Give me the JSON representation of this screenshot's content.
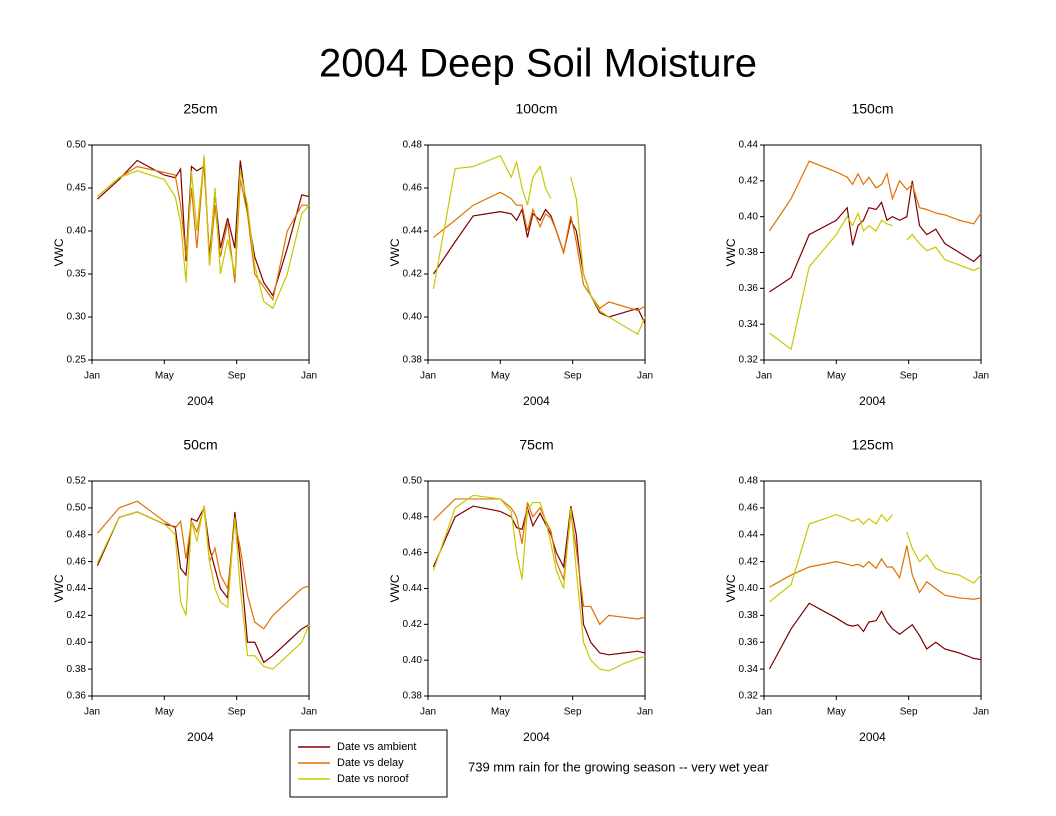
{
  "title": "2004 Deep Soil Moisture",
  "annotation": "739 mm rain for the growing season -- very wet year",
  "chart_data": [
    {
      "type": "line",
      "title": "25cm",
      "x_label": "2004",
      "y_label": "VWC",
      "x": [
        0.3,
        1.5,
        2.5,
        4.0,
        4.6,
        4.9,
        5.2,
        5.5,
        5.8,
        6.2,
        6.5,
        6.8,
        7.1,
        7.5,
        7.9,
        8.2,
        8.6,
        9.0,
        9.5,
        10.0,
        10.8,
        11.6,
        12.0
      ],
      "xlim": [
        0,
        12
      ],
      "xticks": [
        {
          "value": 0,
          "label": "Jan"
        },
        {
          "value": 4,
          "label": "May"
        },
        {
          "value": 8,
          "label": "Sep"
        },
        {
          "value": 12,
          "label": "Jan"
        }
      ],
      "ylim": [
        0.25,
        0.5
      ],
      "yticks": [
        0.25,
        {
          "value": 0.3,
          "label": "0.30"
        },
        0.35,
        {
          "value": 0.4,
          "label": "0.40"
        },
        0.45,
        {
          "value": 0.5,
          "label": "0.50"
        }
      ],
      "series": [
        {
          "name": "Date vs ambient",
          "color": "#800000",
          "values": [
            0.437,
            0.46,
            0.482,
            0.465,
            0.462,
            0.472,
            0.365,
            0.475,
            0.47,
            0.475,
            0.37,
            0.445,
            0.38,
            0.415,
            0.38,
            0.482,
            0.42,
            0.37,
            0.34,
            0.325,
            0.38,
            0.442,
            0.44
          ]
        },
        {
          "name": "Date vs delay",
          "color": "#e07000",
          "values": [
            0.44,
            0.462,
            0.475,
            0.468,
            0.465,
            0.43,
            0.37,
            0.45,
            0.38,
            0.485,
            0.36,
            0.43,
            0.37,
            0.41,
            0.34,
            0.46,
            0.42,
            0.35,
            0.335,
            0.32,
            0.4,
            0.43,
            0.43
          ]
        },
        {
          "name": "Date vs noroof",
          "color": "#c8c800",
          "values": [
            0.44,
            0.462,
            0.47,
            0.46,
            0.44,
            0.41,
            0.34,
            0.47,
            0.4,
            0.488,
            0.36,
            0.45,
            0.35,
            0.39,
            0.35,
            0.47,
            0.43,
            0.36,
            0.318,
            0.31,
            0.35,
            0.42,
            0.43
          ]
        }
      ]
    },
    {
      "type": "line",
      "title": "100cm",
      "x_label": "2004",
      "y_label": "VWC",
      "x": [
        0.3,
        1.5,
        2.5,
        4.0,
        4.6,
        4.9,
        5.2,
        5.5,
        5.8,
        6.2,
        6.5,
        6.8,
        7.1,
        7.5,
        7.9,
        8.2,
        8.6,
        9.0,
        9.5,
        10.0,
        10.8,
        11.6,
        12.0
      ],
      "xlim": [
        0,
        12
      ],
      "xticks": [
        {
          "value": 0,
          "label": "Jan"
        },
        {
          "value": 4,
          "label": "May"
        },
        {
          "value": 8,
          "label": "Sep"
        },
        {
          "value": 12,
          "label": "Jan"
        }
      ],
      "ylim": [
        0.38,
        0.48
      ],
      "yticks": [
        0.38,
        {
          "value": 0.4,
          "label": "0.40"
        },
        0.42,
        0.44,
        0.46,
        0.48
      ],
      "series": [
        {
          "name": "Date vs ambient",
          "color": "#800000",
          "values": [
            0.42,
            0.435,
            0.447,
            0.449,
            0.448,
            0.445,
            0.45,
            0.437,
            0.448,
            0.445,
            0.45,
            0.447,
            0.44,
            0.43,
            0.445,
            0.44,
            0.42,
            0.41,
            0.402,
            0.4,
            0.402,
            0.404,
            0.397
          ]
        },
        {
          "name": "Date vs delay",
          "color": "#e07000",
          "values": [
            0.437,
            0.445,
            0.452,
            0.458,
            0.455,
            0.452,
            0.452,
            0.44,
            0.45,
            0.442,
            0.448,
            0.446,
            0.44,
            0.43,
            0.447,
            0.435,
            0.415,
            0.41,
            0.404,
            0.407,
            0.405,
            0.403,
            0.405
          ]
        },
        {
          "name": "Date vs noroof",
          "color": "#c8c800",
          "values": [
            0.413,
            0.469,
            0.47,
            0.475,
            0.465,
            0.472,
            0.46,
            0.452,
            0.465,
            0.47,
            0.46,
            0.455,
            null,
            null,
            0.465,
            0.455,
            0.42,
            0.41,
            0.403,
            0.4,
            0.396,
            0.392,
            0.4
          ]
        }
      ]
    },
    {
      "type": "line",
      "title": "150cm",
      "x_label": "2004",
      "y_label": "VWC",
      "x": [
        0.3,
        1.5,
        2.5,
        4.0,
        4.6,
        4.9,
        5.2,
        5.5,
        5.8,
        6.2,
        6.5,
        6.8,
        7.1,
        7.5,
        7.9,
        8.2,
        8.6,
        9.0,
        9.5,
        10.0,
        10.8,
        11.6,
        12.0
      ],
      "xlim": [
        0,
        12
      ],
      "xticks": [
        {
          "value": 0,
          "label": "Jan"
        },
        {
          "value": 4,
          "label": "May"
        },
        {
          "value": 8,
          "label": "Sep"
        },
        {
          "value": 12,
          "label": "Jan"
        }
      ],
      "ylim": [
        0.32,
        0.44
      ],
      "yticks": [
        0.32,
        0.34,
        0.36,
        0.38,
        {
          "value": 0.4,
          "label": "0.40"
        },
        0.42,
        0.44
      ],
      "series": [
        {
          "name": "Date vs ambient",
          "color": "#800000",
          "values": [
            0.358,
            0.366,
            0.39,
            0.398,
            0.405,
            0.384,
            0.395,
            0.398,
            0.405,
            0.404,
            0.408,
            0.398,
            0.4,
            0.398,
            0.4,
            0.42,
            0.395,
            0.39,
            0.393,
            0.385,
            0.38,
            0.375,
            0.379
          ]
        },
        {
          "name": "Date vs delay",
          "color": "#e07000",
          "values": [
            0.392,
            0.41,
            0.431,
            0.425,
            0.422,
            0.418,
            0.424,
            0.418,
            0.422,
            0.416,
            0.418,
            0.424,
            0.41,
            0.42,
            0.415,
            0.418,
            0.405,
            0.404,
            0.402,
            0.401,
            0.398,
            0.396,
            0.402
          ]
        },
        {
          "name": "Date vs noroof",
          "color": "#c8c800",
          "values": [
            0.335,
            0.326,
            0.372,
            0.39,
            0.4,
            0.395,
            0.402,
            0.392,
            0.395,
            0.392,
            0.398,
            0.396,
            0.395,
            null,
            0.387,
            0.39,
            0.385,
            0.381,
            0.383,
            0.376,
            0.373,
            0.37,
            0.372
          ]
        }
      ]
    },
    {
      "type": "line",
      "title": "50cm",
      "x_label": "2004",
      "y_label": "VWC",
      "x": [
        0.3,
        1.5,
        2.5,
        4.0,
        4.6,
        4.9,
        5.2,
        5.5,
        5.8,
        6.2,
        6.5,
        6.8,
        7.1,
        7.5,
        7.9,
        8.2,
        8.6,
        9.0,
        9.5,
        10.0,
        10.8,
        11.6,
        12.0
      ],
      "xlim": [
        0,
        12
      ],
      "xticks": [
        {
          "value": 0,
          "label": "Jan"
        },
        {
          "value": 4,
          "label": "May"
        },
        {
          "value": 8,
          "label": "Sep"
        },
        {
          "value": 12,
          "label": "Jan"
        }
      ],
      "ylim": [
        0.36,
        0.52
      ],
      "yticks": [
        0.36,
        0.38,
        {
          "value": 0.4,
          "label": "0.40"
        },
        0.42,
        0.44,
        0.46,
        0.48,
        {
          "value": 0.5,
          "label": "0.50"
        },
        0.52
      ],
      "series": [
        {
          "name": "Date vs ambient",
          "color": "#800000",
          "values": [
            0.457,
            0.493,
            0.497,
            0.488,
            0.486,
            0.455,
            0.45,
            0.492,
            0.49,
            0.5,
            0.47,
            0.455,
            0.44,
            0.433,
            0.497,
            0.46,
            0.4,
            0.4,
            0.385,
            0.39,
            0.4,
            0.41,
            0.413
          ]
        },
        {
          "name": "Date vs delay",
          "color": "#e07000",
          "values": [
            0.481,
            0.5,
            0.505,
            0.49,
            0.485,
            0.49,
            0.462,
            0.49,
            0.482,
            0.5,
            0.46,
            0.47,
            0.45,
            0.44,
            0.49,
            0.47,
            0.435,
            0.415,
            0.41,
            0.42,
            0.43,
            0.44,
            0.442
          ]
        },
        {
          "name": "Date vs noroof",
          "color": "#c8c800",
          "values": [
            0.459,
            0.493,
            0.497,
            0.488,
            0.48,
            0.43,
            0.42,
            0.49,
            0.475,
            0.502,
            0.46,
            0.44,
            0.43,
            0.426,
            0.493,
            0.44,
            0.39,
            0.39,
            0.382,
            0.38,
            0.39,
            0.4,
            0.413
          ]
        }
      ]
    },
    {
      "type": "line",
      "title": "75cm",
      "x_label": "2004",
      "y_label": "VWC",
      "x": [
        0.3,
        1.5,
        2.5,
        4.0,
        4.6,
        4.9,
        5.2,
        5.5,
        5.8,
        6.2,
        6.5,
        6.8,
        7.1,
        7.5,
        7.9,
        8.2,
        8.6,
        9.0,
        9.5,
        10.0,
        10.8,
        11.6,
        12.0
      ],
      "xlim": [
        0,
        12
      ],
      "xticks": [
        {
          "value": 0,
          "label": "Jan"
        },
        {
          "value": 4,
          "label": "May"
        },
        {
          "value": 8,
          "label": "Sep"
        },
        {
          "value": 12,
          "label": "Jan"
        }
      ],
      "ylim": [
        0.38,
        0.5
      ],
      "yticks": [
        0.38,
        {
          "value": 0.4,
          "label": "0.40"
        },
        0.42,
        0.44,
        0.46,
        0.48,
        {
          "value": 0.5,
          "label": "0.50"
        }
      ],
      "series": [
        {
          "name": "Date vs ambient",
          "color": "#800000",
          "values": [
            0.452,
            0.48,
            0.486,
            0.483,
            0.48,
            0.474,
            0.473,
            0.485,
            0.475,
            0.482,
            0.476,
            0.47,
            0.46,
            0.452,
            0.486,
            0.47,
            0.42,
            0.41,
            0.404,
            0.403,
            0.404,
            0.405,
            0.404
          ]
        },
        {
          "name": "Date vs delay",
          "color": "#e07000",
          "values": [
            0.478,
            0.49,
            0.49,
            0.49,
            0.485,
            0.48,
            0.465,
            0.488,
            0.48,
            0.485,
            0.478,
            0.472,
            0.455,
            0.445,
            0.482,
            0.462,
            0.43,
            0.43,
            0.42,
            0.425,
            0.424,
            0.423,
            0.424
          ]
        },
        {
          "name": "Date vs noroof",
          "color": "#c8c800",
          "values": [
            0.45,
            0.485,
            0.492,
            0.49,
            0.483,
            0.46,
            0.445,
            0.484,
            0.488,
            0.488,
            0.478,
            0.465,
            0.45,
            0.44,
            0.485,
            0.45,
            0.41,
            0.4,
            0.395,
            0.394,
            0.398,
            0.401,
            0.402
          ]
        }
      ]
    },
    {
      "type": "line",
      "title": "125cm",
      "x_label": "2004",
      "y_label": "VWC",
      "x": [
        0.3,
        1.5,
        2.5,
        4.0,
        4.6,
        4.9,
        5.2,
        5.5,
        5.8,
        6.2,
        6.5,
        6.8,
        7.1,
        7.5,
        7.9,
        8.2,
        8.6,
        9.0,
        9.5,
        10.0,
        10.8,
        11.6,
        12.0
      ],
      "xlim": [
        0,
        12
      ],
      "xticks": [
        {
          "value": 0,
          "label": "Jan"
        },
        {
          "value": 4,
          "label": "May"
        },
        {
          "value": 8,
          "label": "Sep"
        },
        {
          "value": 12,
          "label": "Jan"
        }
      ],
      "ylim": [
        0.32,
        0.48
      ],
      "yticks": [
        0.32,
        0.34,
        0.36,
        0.38,
        {
          "value": 0.4,
          "label": "0.40"
        },
        0.42,
        0.44,
        0.46,
        0.48
      ],
      "series": [
        {
          "name": "Date vs ambient",
          "color": "#800000",
          "values": [
            0.34,
            0.37,
            0.389,
            0.378,
            0.373,
            0.372,
            0.373,
            0.368,
            0.375,
            0.376,
            0.383,
            0.375,
            0.37,
            0.366,
            0.37,
            0.373,
            0.365,
            0.355,
            0.36,
            0.355,
            0.352,
            0.348,
            0.347
          ]
        },
        {
          "name": "Date vs delay",
          "color": "#e07000",
          "values": [
            0.401,
            0.41,
            0.416,
            0.42,
            0.418,
            0.417,
            0.418,
            0.416,
            0.42,
            0.415,
            0.422,
            0.416,
            0.416,
            0.408,
            0.432,
            0.41,
            0.397,
            0.405,
            0.4,
            0.395,
            0.393,
            0.392,
            0.393
          ]
        },
        {
          "name": "Date vs noroof",
          "color": "#c8c800",
          "values": [
            0.39,
            0.403,
            0.448,
            0.455,
            0.452,
            0.45,
            0.452,
            0.448,
            0.452,
            0.448,
            0.455,
            0.45,
            0.455,
            null,
            0.442,
            0.43,
            0.42,
            0.425,
            0.415,
            0.412,
            0.41,
            0.404,
            0.41
          ]
        }
      ]
    }
  ]
}
